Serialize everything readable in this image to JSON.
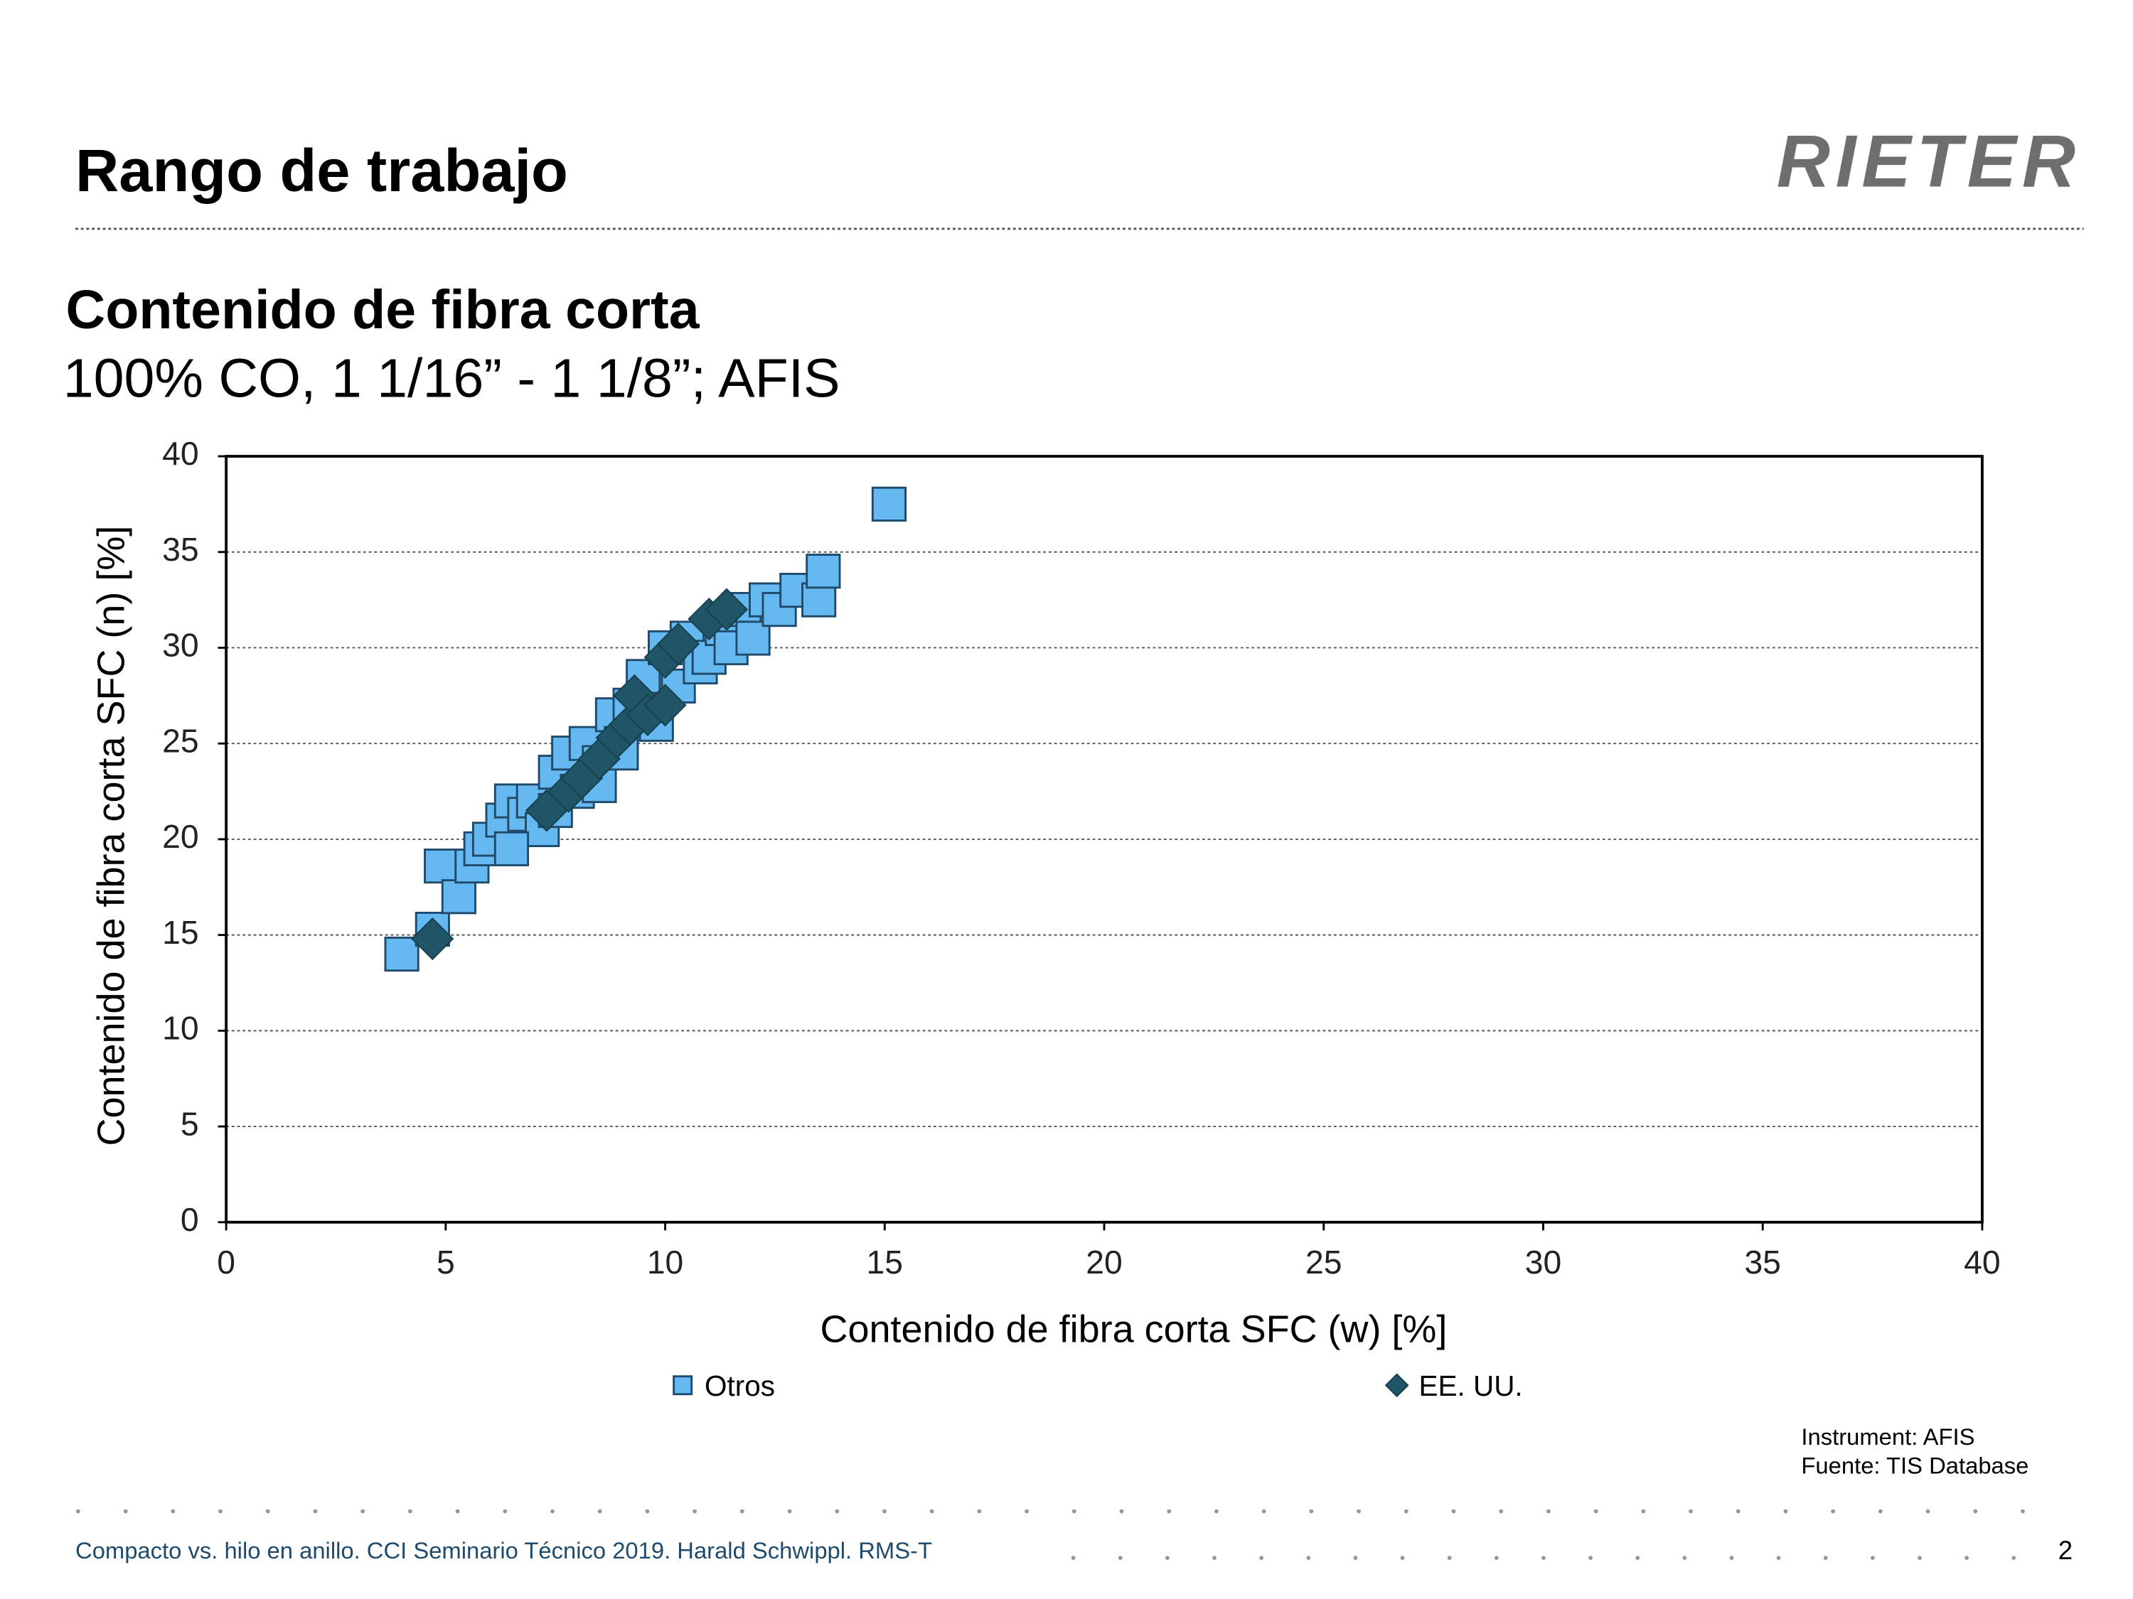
{
  "header": {
    "title": "Rango de trabajo",
    "logo": "RIETER"
  },
  "chart_data": {
    "type": "scatter",
    "title": "Contenido de fibra corta",
    "subtitle": "100% CO, 1 1/16” - 1 1/8”; AFIS",
    "x_label": "Contenido de fibra corta SFC (w) [%]",
    "y_label": "Contenido de fibra corta SFC (n) [%]",
    "xlim": [
      0,
      40
    ],
    "xticks": [
      0,
      5,
      10,
      15,
      20,
      25,
      30,
      35,
      40
    ],
    "ylim": [
      0,
      40
    ],
    "yticks": [
      0,
      5,
      10,
      15,
      20,
      25,
      30,
      35,
      40
    ],
    "grid": true,
    "series": [
      {
        "name": "Otros",
        "color": "#66b8f0",
        "marker": "square",
        "x": [
          4,
          15.1,
          4.7,
          4.9,
          5.3,
          5.6,
          5.8,
          6,
          6.3,
          6.5,
          6.8,
          7,
          7.2,
          7.5,
          7.8,
          8,
          8.2,
          8.5,
          8.8,
          9,
          9.2,
          9.5,
          9.8,
          10,
          10.3,
          10.5,
          10.8,
          11,
          11.3,
          11.5,
          11.8,
          12,
          12.3,
          12.6,
          13,
          13.5,
          13.6,
          6.5,
          7.5,
          8.5,
          9
        ],
        "values": [
          14,
          37.5,
          15.3,
          18.6,
          17,
          18.6,
          19.5,
          20,
          21,
          22,
          21.3,
          22,
          20.5,
          23.5,
          24.5,
          22.5,
          25,
          24,
          26.5,
          25,
          27,
          28.5,
          26,
          30,
          28,
          30.5,
          29,
          29.5,
          31,
          30,
          32,
          30.5,
          32.5,
          32,
          33,
          32.5,
          34,
          19.5,
          21.5,
          22.8,
          24.5
        ]
      },
      {
        "name": "EE. UU.",
        "color": "#1f5566",
        "marker": "diamond",
        "x": [
          4.7,
          7.3,
          7.8,
          8.1,
          8.5,
          8.9,
          9.2,
          9.3,
          9.6,
          10,
          10,
          10.3,
          11,
          11.4
        ],
        "values": [
          14.8,
          21.5,
          22.5,
          23.2,
          24.2,
          25.3,
          26,
          27.5,
          26.5,
          27,
          29.5,
          30.2,
          31.5,
          32
        ]
      }
    ]
  },
  "notes": [
    "Instrument: AFIS",
    "Fuente: TIS Database"
  ],
  "footer": {
    "text": "Compacto vs. hilo en anillo. CCI Seminario Técnico 2019. Harald Schwippl. RMS-T",
    "page": "2"
  }
}
